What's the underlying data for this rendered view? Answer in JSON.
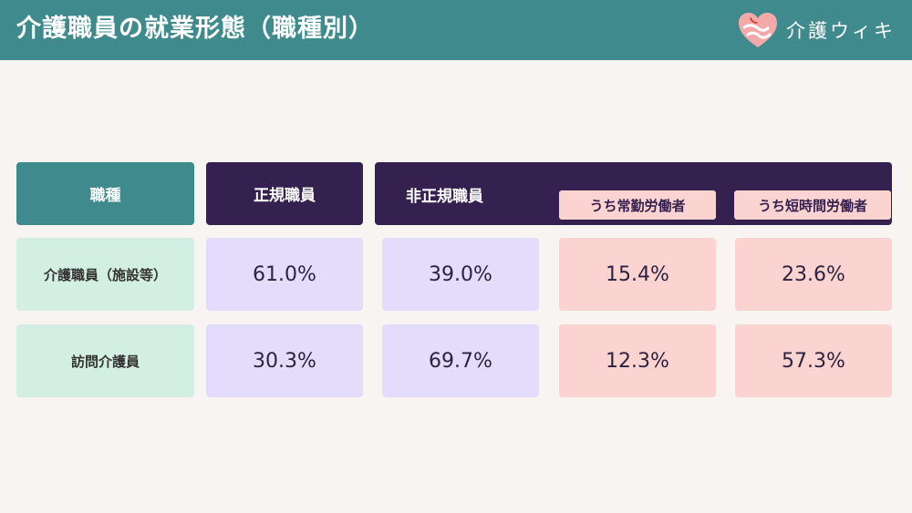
{
  "header": {
    "title": "介護職員の就業形態（職種別）",
    "brand_name": "介護ウィキ"
  },
  "colors": {
    "header_bg": "#3e8a8c",
    "dark_header": "#35214f",
    "row_label_bg": "#d3efe3",
    "value_purple_bg": "#e3ddfb",
    "value_pink_bg": "#fbd3d0",
    "page_bg": "#f8f4f2"
  },
  "chart_data": {
    "type": "table",
    "columns": {
      "job_type": "職種",
      "regular": "正規職員",
      "non_regular": "非正規職員",
      "full_time": "うち常勤労働者",
      "part_time": "うち短時間労働者"
    },
    "rows": [
      {
        "label": "介護職員（施設等）",
        "values": [
          "61.0%",
          "39.0%",
          "15.4%",
          "23.6%"
        ]
      },
      {
        "label": "訪問介護員",
        "values": [
          "30.3%",
          "69.7%",
          "12.3%",
          "57.3%"
        ]
      }
    ]
  }
}
